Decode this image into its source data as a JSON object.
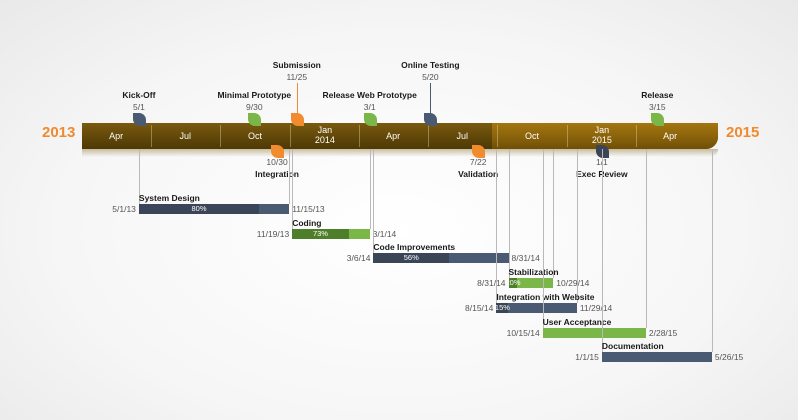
{
  "years": {
    "start": "2013",
    "end": "2015"
  },
  "colors": {
    "orange": "#f28a2e",
    "green": "#7ab648",
    "slate": "#4a5a72",
    "navy": "#3a4558",
    "band_dark": "#5e4508",
    "band_light": "#86600a"
  },
  "months": [
    {
      "label": "Apr",
      "date": "2013-04-01"
    },
    {
      "label": "Jul",
      "date": "2013-07-01"
    },
    {
      "label": "Oct",
      "date": "2013-10-01"
    },
    {
      "label": "Jan\n2014",
      "date": "2014-01-01"
    },
    {
      "label": "Apr",
      "date": "2014-04-01"
    },
    {
      "label": "Jul",
      "date": "2014-07-01"
    },
    {
      "label": "Oct",
      "date": "2014-10-01"
    },
    {
      "label": "Jan\n2015",
      "date": "2015-01-01"
    },
    {
      "label": "Apr",
      "date": "2015-04-01"
    }
  ],
  "milestones_above": [
    {
      "name": "Kick-Off",
      "date_label": "5/1",
      "date": "2013-05-01",
      "color": "slate",
      "tier": 1
    },
    {
      "name": "Minimal Prototype",
      "date_label": "9/30",
      "date": "2013-09-30",
      "color": "green",
      "tier": 1
    },
    {
      "name": "Submission",
      "date_label": "11/25",
      "date": "2013-11-25",
      "color": "orange",
      "tier": 2
    },
    {
      "name": "Release Web Prototype",
      "date_label": "3/1",
      "date": "2014-03-01",
      "color": "green",
      "tier": 1
    },
    {
      "name": "Online Testing",
      "date_label": "5/20",
      "date": "2014-05-20",
      "color": "slate",
      "tier": 2
    },
    {
      "name": "Release",
      "date_label": "3/15",
      "date": "2015-03-15",
      "color": "green",
      "tier": 1
    }
  ],
  "milestones_below": [
    {
      "name": "Integration",
      "date_label": "10/30",
      "date": "2013-10-30",
      "color": "orange"
    },
    {
      "name": "Validation",
      "date_label": "7/22",
      "date": "2014-07-22",
      "color": "orange"
    },
    {
      "name": "Exec Review",
      "date_label": "1/1",
      "date": "2015-01-01",
      "color": "navy"
    }
  ],
  "tasks": [
    {
      "name": "System Design",
      "start_label": "5/1/13",
      "end_label": "11/15/13",
      "start": "2013-05-01",
      "end": "2013-11-15",
      "percent": 80,
      "percent_label": "80%",
      "color": "slate",
      "fill": "navy"
    },
    {
      "name": "Coding",
      "start_label": "11/19/13",
      "end_label": "3/1/14",
      "start": "2013-11-19",
      "end": "2014-03-01",
      "percent": 73,
      "percent_label": "73%",
      "color": "green",
      "fill": "green_dark"
    },
    {
      "name": "Code Improvements",
      "start_label": "3/6/14",
      "end_label": "8/31/14",
      "start": "2014-03-06",
      "end": "2014-08-31",
      "percent": 56,
      "percent_label": "56%",
      "color": "slate",
      "fill": "navy"
    },
    {
      "name": "Stabilization",
      "start_label": "8/31/14",
      "end_label": "10/29/14",
      "start": "2014-08-31",
      "end": "2014-10-29",
      "percent": 20,
      "percent_label": "20%",
      "color": "green",
      "fill": "green_dark"
    },
    {
      "name": "Integration with Website",
      "start_label": "8/15/14",
      "end_label": "11/29/14",
      "start": "2014-08-15",
      "end": "2014-11-29",
      "percent": 15,
      "percent_label": "15%",
      "color": "slate",
      "fill": "navy"
    },
    {
      "name": "User Acceptance",
      "start_label": "10/15/14",
      "end_label": "2/28/15",
      "start": "2014-10-15",
      "end": "2015-02-28",
      "percent": null,
      "percent_label": "",
      "color": "green",
      "fill": "green_dark"
    },
    {
      "name": "Documentation",
      "start_label": "1/1/15",
      "end_label": "5/26/15",
      "start": "2015-01-01",
      "end": "2015-05-26",
      "percent": null,
      "percent_label": "",
      "color": "slate",
      "fill": "navy"
    }
  ]
}
